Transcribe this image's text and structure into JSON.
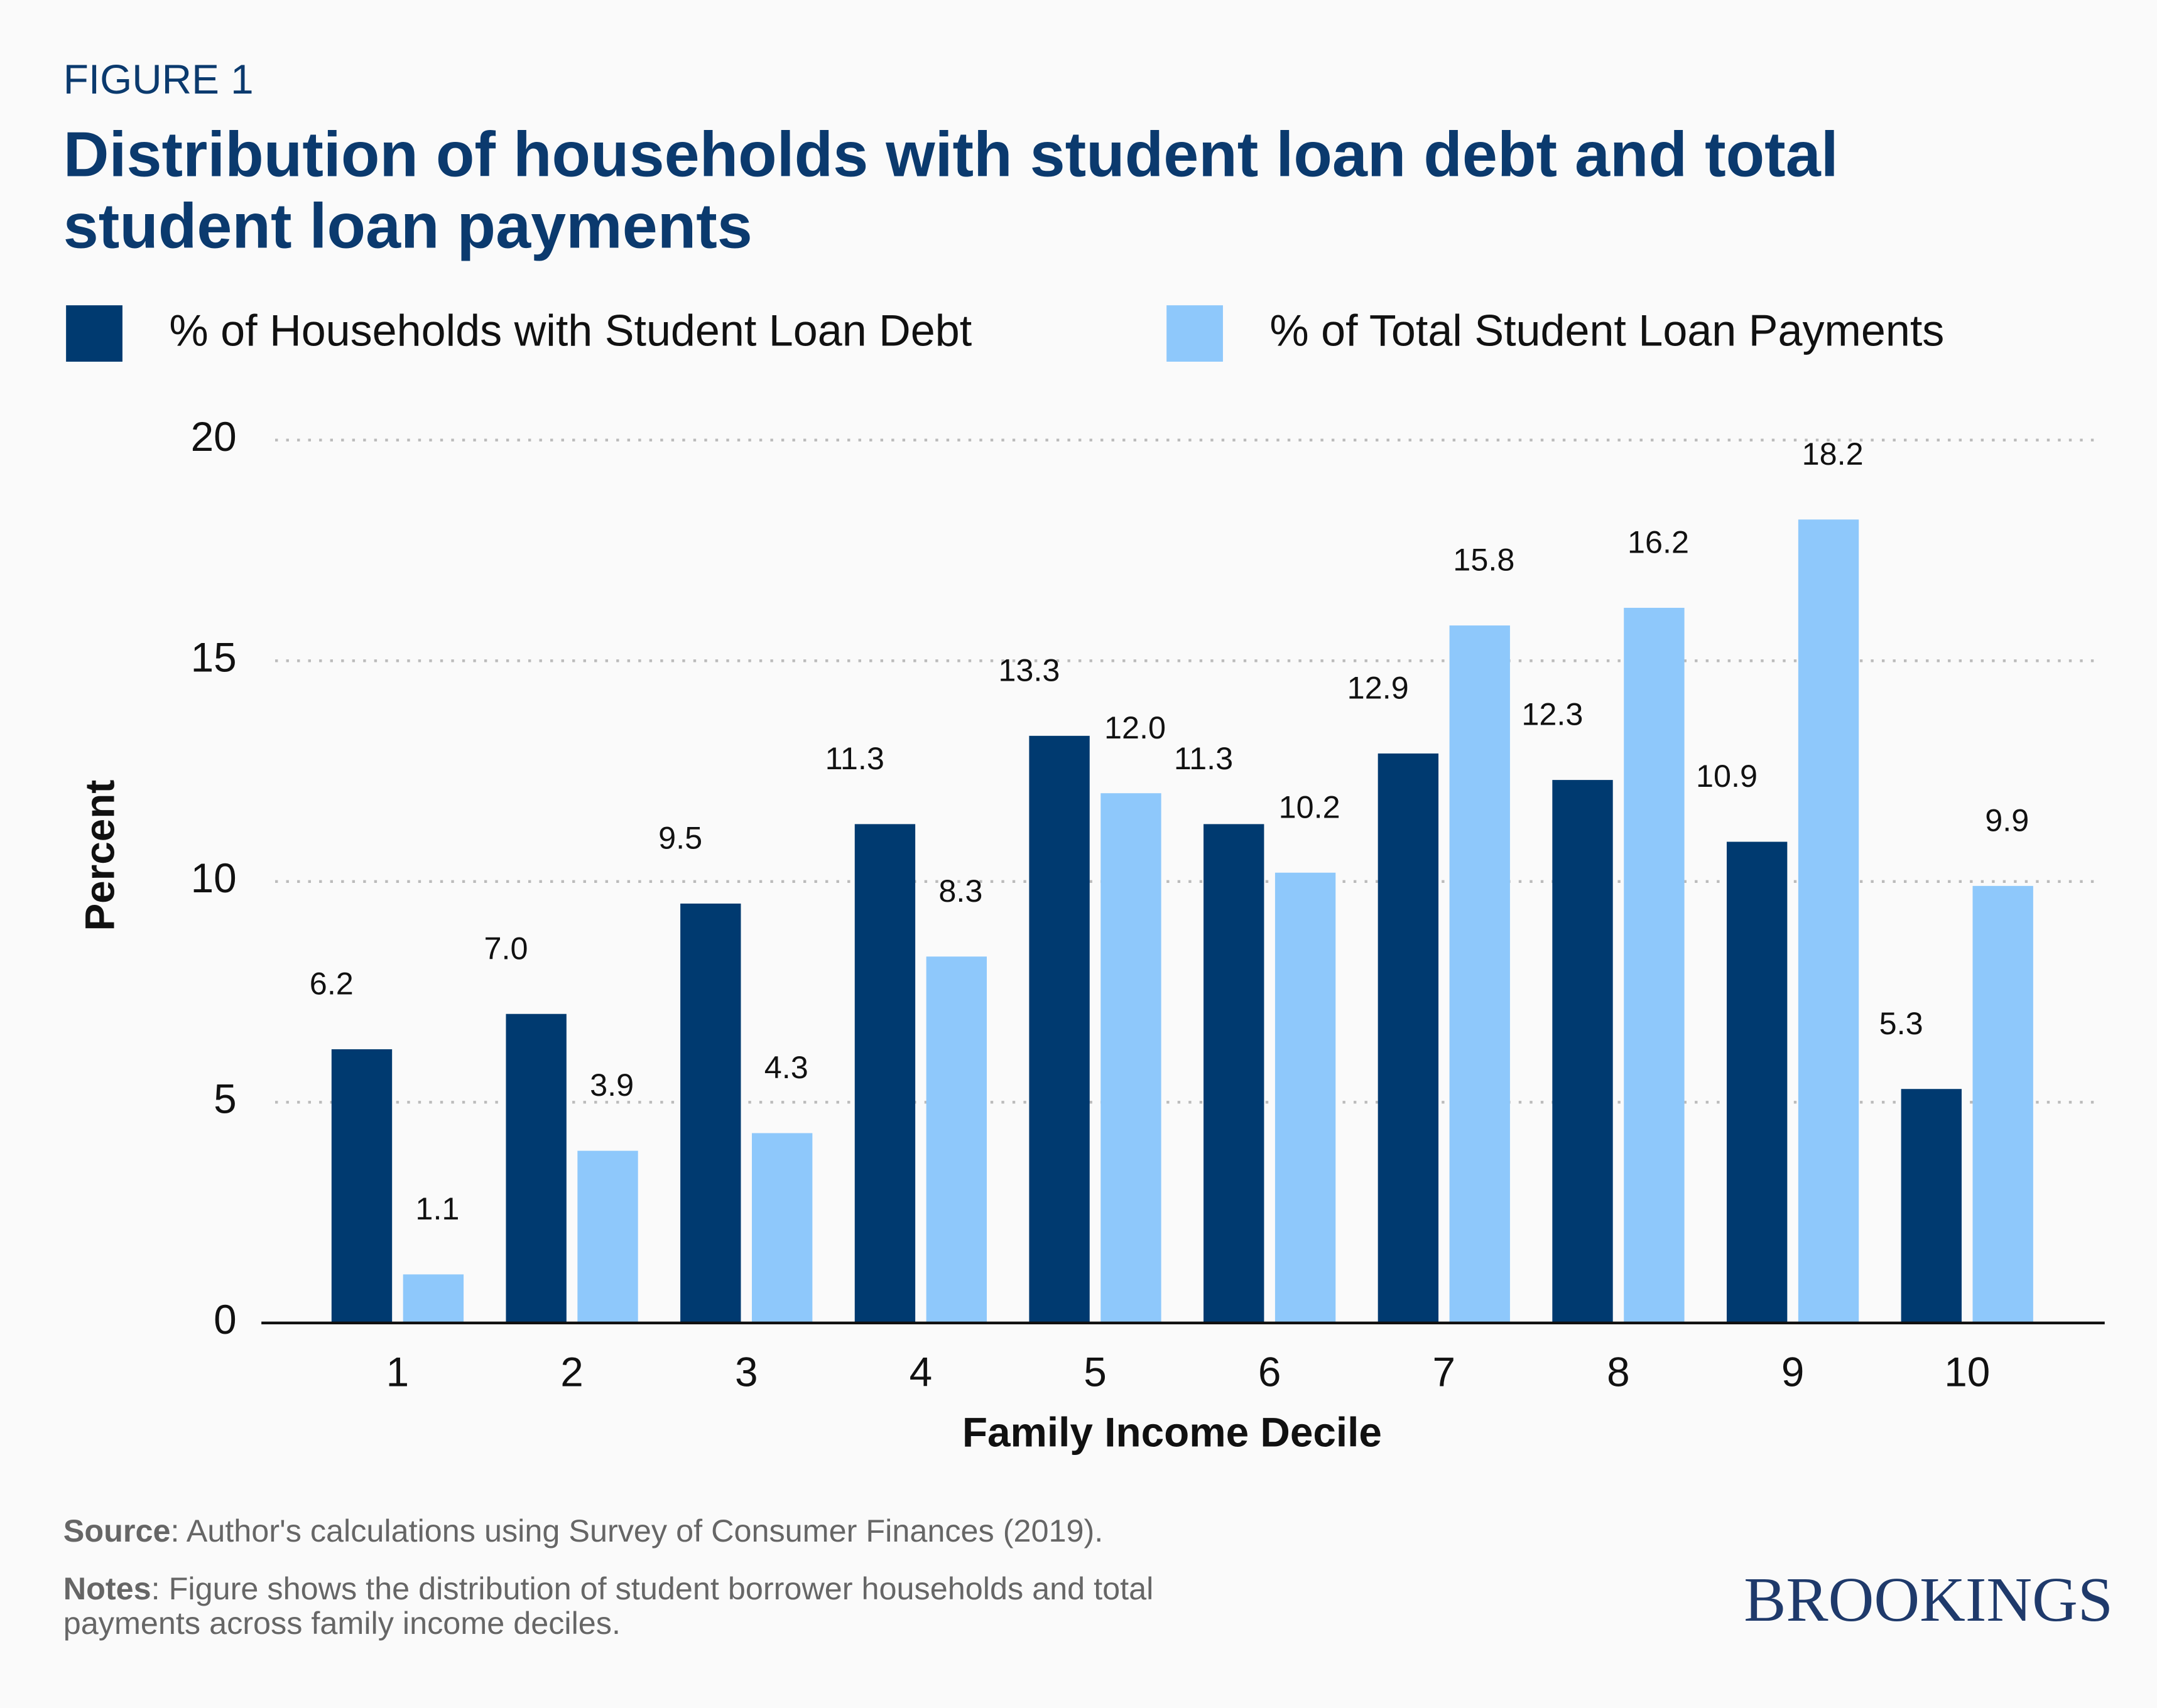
{
  "chart_data": {
    "type": "bar",
    "figure_label": "FIGURE 1",
    "title_lines": [
      "Distribution of households with student loan debt and total",
      "student loan payments"
    ],
    "x_label": "Family Income Decile",
    "y_label": "Percent",
    "categories": [
      "1",
      "2",
      "3",
      "4",
      "5",
      "6",
      "7",
      "8",
      "9",
      "10"
    ],
    "series": [
      {
        "name": "% of Households with Student Loan Debt",
        "color": "#003a70",
        "values": [
          6.2,
          7.0,
          9.5,
          11.3,
          13.3,
          11.3,
          12.9,
          12.3,
          10.9,
          5.3
        ],
        "value_labels": [
          "6.2",
          "7.0",
          "9.5",
          "11.3",
          "13.3",
          "11.3",
          "12.9",
          "12.3",
          "10.9",
          "5.3"
        ]
      },
      {
        "name": "% of Total Student Loan Payments",
        "color": "#8ec8fb",
        "values": [
          1.1,
          3.9,
          4.3,
          8.3,
          12.0,
          10.2,
          15.8,
          16.2,
          18.2,
          9.9
        ],
        "value_labels": [
          "1.1",
          "3.9",
          "4.3",
          "8.3",
          "12.0",
          "10.2",
          "15.8",
          "16.2",
          "18.2",
          "9.9"
        ]
      }
    ],
    "ylim": [
      0,
      20
    ],
    "yticks": [
      0,
      5,
      10,
      15,
      20
    ],
    "grid": true,
    "legend": "top",
    "source": {
      "label": "Source",
      "text": ": Author's calculations using Survey of Consumer Finances (2019)."
    },
    "notes": {
      "label": "Notes",
      "lines": [
        ": Figure shows the distribution of student borrower households and total",
        "payments across family income deciles."
      ]
    },
    "brand": "BROOKINGS"
  }
}
